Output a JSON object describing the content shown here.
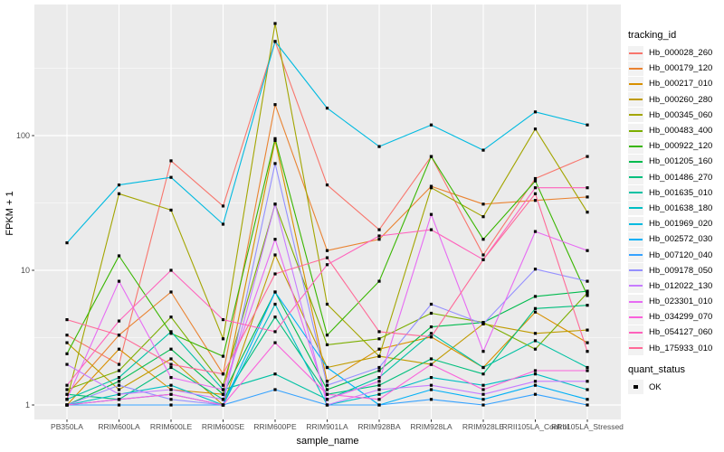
{
  "figure": {
    "background": "#FFFFFF",
    "panel_background": "#EBEBEB",
    "gridline_color": "#FFFFFF",
    "tick_color": "#333333",
    "tick_label_color": "#4D4D4D",
    "point_color": "#000000"
  },
  "chart_data": {
    "type": "line",
    "title": "",
    "xlabel": "sample_name",
    "ylabel": "FPKM + 1",
    "y_scale": "log10",
    "y_ticks": [
      1,
      10,
      100
    ],
    "ylim": [
      0.8,
      900
    ],
    "grid": true,
    "legend_position": "right",
    "marker": "black-square",
    "categories": [
      "PB350LA",
      "RRIM600LA",
      "RRIM600LE",
      "RRIM600SE",
      "RRIM600PE",
      "RRIM901LA",
      "RRIM928BA",
      "RRIM928LA",
      "RRIM928LE",
      "RRII105LA_Control",
      "RRII105LA_Stressed"
    ],
    "series": [
      {
        "tracking_id": "Hb_000028_260",
        "color": "#F8766D",
        "values": [
          3.3,
          2.0,
          65,
          30,
          500,
          43,
          20,
          70,
          13,
          48,
          70
        ]
      },
      {
        "tracking_id": "Hb_000179_120",
        "color": "#EA8331",
        "values": [
          1.2,
          3.3,
          6.9,
          1.7,
          170,
          14,
          17,
          42,
          31,
          33,
          35
        ]
      },
      {
        "tracking_id": "Hb_000217_010",
        "color": "#D89000",
        "values": [
          1.0,
          2.6,
          1.3,
          1.2,
          92,
          1.5,
          2.6,
          3.2,
          1.9,
          4.9,
          2.9
        ]
      },
      {
        "tracking_id": "Hb_000260_280",
        "color": "#C09B00",
        "values": [
          2.9,
          1.3,
          2.2,
          1.0,
          13,
          1.9,
          2.3,
          2.0,
          4.0,
          3.4,
          3.6
        ]
      },
      {
        "tracking_id": "Hb_000345_060",
        "color": "#A3A500",
        "values": [
          1.1,
          37,
          28,
          3.1,
          680,
          5.6,
          2.3,
          41,
          25,
          112,
          27
        ]
      },
      {
        "tracking_id": "Hb_000483_400",
        "color": "#7CAE00",
        "values": [
          1.3,
          1.8,
          4.5,
          1.4,
          31,
          2.8,
          3.1,
          4.8,
          4.1,
          2.6,
          6.8
        ]
      },
      {
        "tracking_id": "Hb_000922_120",
        "color": "#39B600",
        "values": [
          2.4,
          12.8,
          3.4,
          2.3,
          95,
          3.3,
          8.3,
          70,
          17,
          46,
          6.5
        ]
      },
      {
        "tracking_id": "Hb_001205_160",
        "color": "#00BB4E",
        "values": [
          1.0,
          1.5,
          2.6,
          1.2,
          6.9,
          1.3,
          1.8,
          3.8,
          4.1,
          6.4,
          7.0
        ]
      },
      {
        "tracking_id": "Hb_001486_270",
        "color": "#00BF7D",
        "values": [
          1.2,
          1.1,
          1.9,
          1.1,
          4.5,
          1.2,
          1.4,
          2.2,
          1.7,
          5.2,
          5.5
        ]
      },
      {
        "tracking_id": "Hb_001635_010",
        "color": "#00C1A3",
        "values": [
          1.1,
          1.6,
          3.5,
          1.3,
          1.7,
          1.1,
          1.6,
          3.4,
          1.9,
          3.0,
          1.9
        ]
      },
      {
        "tracking_id": "Hb_001638_180",
        "color": "#00BFC4",
        "values": [
          1.0,
          1.2,
          1.4,
          1.0,
          5.6,
          1.0,
          1.2,
          1.6,
          1.4,
          1.7,
          1.3
        ]
      },
      {
        "tracking_id": "Hb_001969_020",
        "color": "#00BAE0",
        "values": [
          16,
          43,
          49,
          22,
          500,
          160,
          83,
          120,
          78,
          150,
          120
        ]
      },
      {
        "tracking_id": "Hb_002572_030",
        "color": "#00B0F6",
        "values": [
          1.0,
          1.1,
          1.2,
          1.0,
          6.9,
          1.9,
          1.0,
          1.3,
          1.1,
          1.4,
          1.1
        ]
      },
      {
        "tracking_id": "Hb_007120_040",
        "color": "#35A2FF",
        "values": [
          1.0,
          1.0,
          1.0,
          1.0,
          1.3,
          1.0,
          1.0,
          1.1,
          1.0,
          1.2,
          1.0
        ]
      },
      {
        "tracking_id": "Hb_009178_050",
        "color": "#9590FF",
        "values": [
          1.0,
          1.4,
          1.1,
          1.0,
          62,
          1.4,
          1.9,
          5.6,
          4.0,
          10.2,
          8.3
        ]
      },
      {
        "tracking_id": "Hb_012022_130",
        "color": "#C77CFF",
        "values": [
          2.0,
          1.2,
          1.3,
          1.1,
          31,
          1.0,
          1.3,
          1.4,
          1.2,
          1.5,
          1.5
        ]
      },
      {
        "tracking_id": "Hb_023301_010",
        "color": "#E76BF3",
        "values": [
          1.1,
          8.3,
          1.6,
          1.3,
          17,
          1.1,
          1.5,
          26,
          2.5,
          19.4,
          14
        ]
      },
      {
        "tracking_id": "Hb_034299_070",
        "color": "#FA62DB",
        "values": [
          1.0,
          1.1,
          1.2,
          1.0,
          2.9,
          1.2,
          1.1,
          2.0,
          1.3,
          1.8,
          1.8
        ]
      },
      {
        "tracking_id": "Hb_054127_060",
        "color": "#FF62BC",
        "values": [
          1.4,
          4.2,
          10,
          4.3,
          3.5,
          11,
          18,
          20,
          12,
          41,
          41
        ]
      },
      {
        "tracking_id": "Hb_175933_010",
        "color": "#FF6A98",
        "values": [
          4.3,
          3.3,
          2.0,
          1.7,
          9.4,
          12.4,
          3.5,
          3.2,
          12,
          37,
          2.5
        ]
      }
    ],
    "legend": {
      "title": "tracking_id"
    },
    "legend2": {
      "title": "quant_status",
      "items": [
        {
          "label": "OK",
          "marker": "black-square"
        }
      ]
    }
  }
}
